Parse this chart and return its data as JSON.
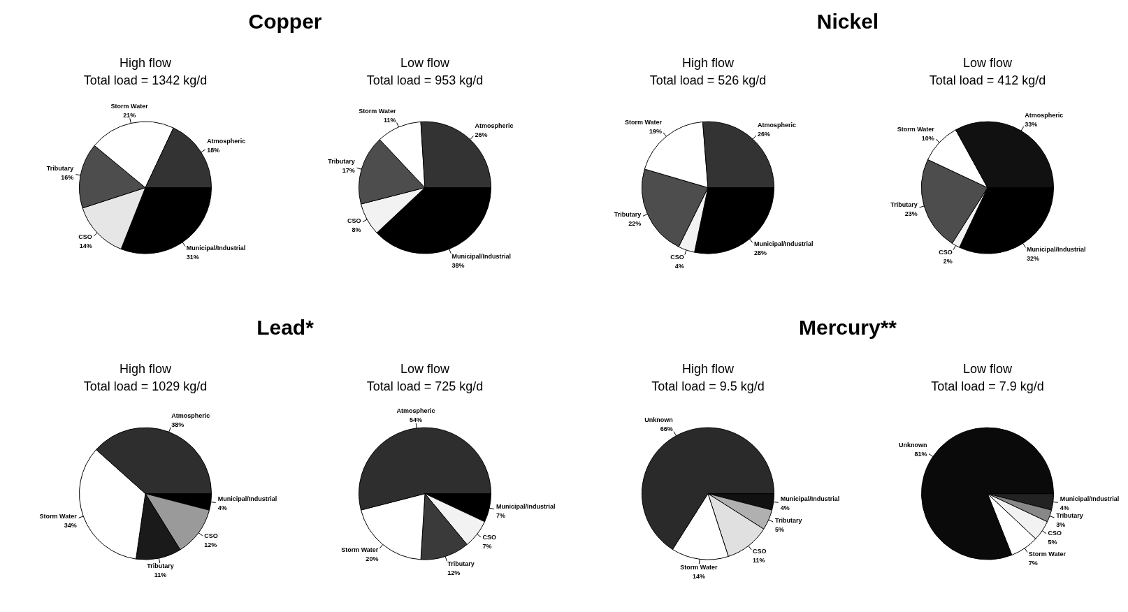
{
  "chart_data": [
    {
      "type": "pie",
      "title": "High flow",
      "subtitle": "Total load = 1342 kg/d",
      "annotations": [
        "Copper"
      ],
      "categories": [
        "Municipal/Industrial",
        "CSO",
        "Tributary",
        "Storm Water",
        "Atmospheric"
      ],
      "values": [
        31,
        14,
        16,
        21,
        18
      ],
      "value_labels": [
        "31%",
        "14%",
        "16%",
        "21%",
        "18%"
      ],
      "colors": [
        "#000000",
        "#e6e6e6",
        "#4d4d4d",
        "#ffffff",
        "#333333"
      ]
    },
    {
      "type": "pie",
      "title": "Low flow",
      "subtitle": "Total load = 953 kg/d",
      "categories": [
        "Municipal/Industrial",
        "CSO",
        "Tributary",
        "Storm Water",
        "Atmospheric"
      ],
      "values": [
        38,
        8,
        17,
        11,
        26
      ],
      "value_labels": [
        "38%",
        "8%",
        "17%",
        "11%",
        "26%"
      ],
      "colors": [
        "#000000",
        "#f2f2f2",
        "#4d4d4d",
        "#ffffff",
        "#333333"
      ]
    },
    {
      "type": "pie",
      "title": "High flow",
      "subtitle": "Total load = 526 kg/d",
      "annotations": [
        "Nickel"
      ],
      "categories": [
        "Municipal/Industrial",
        "CSO",
        "Tributary",
        "Storm Water",
        "Atmospheric"
      ],
      "values": [
        28,
        4,
        22,
        19,
        26
      ],
      "value_labels": [
        "28%",
        "4%",
        "22%",
        "19%",
        "26%"
      ],
      "colors": [
        "#000000",
        "#f2f2f2",
        "#4d4d4d",
        "#ffffff",
        "#333333"
      ]
    },
    {
      "type": "pie",
      "title": "Low flow",
      "subtitle": "Total load = 412 kg/d",
      "categories": [
        "Municipal/Industrial",
        "CSO",
        "Tributary",
        "Storm Water",
        "Atmospheric"
      ],
      "values": [
        32,
        2,
        23,
        10,
        33
      ],
      "value_labels": [
        "32%",
        "2%",
        "23%",
        "10%",
        "33%"
      ],
      "colors": [
        "#000000",
        "#f2f2f2",
        "#4d4d4d",
        "#ffffff",
        "#111111"
      ]
    },
    {
      "type": "pie",
      "title": "High flow",
      "subtitle": "Total load = 1029 kg/d",
      "annotations": [
        "Lead*"
      ],
      "categories": [
        "Municipal/Industrial",
        "CSO",
        "Tributary",
        "Storm Water",
        "Atmospheric"
      ],
      "values": [
        4,
        12,
        11,
        34,
        38
      ],
      "value_labels": [
        "4%",
        "12%",
        "11%",
        "34%",
        "38%"
      ],
      "colors": [
        "#000000",
        "#9a9a9a",
        "#1a1a1a",
        "#ffffff",
        "#2e2e2e"
      ]
    },
    {
      "type": "pie",
      "title": "Low flow",
      "subtitle": "Total load = 725 kg/d",
      "categories": [
        "Municipal/Industrial",
        "CSO",
        "Tributary",
        "Storm Water",
        "Atmospheric"
      ],
      "values": [
        7,
        7,
        12,
        20,
        54
      ],
      "value_labels": [
        "7%",
        "7%",
        "12%",
        "20%",
        "54%"
      ],
      "colors": [
        "#000000",
        "#f2f2f2",
        "#3a3a3a",
        "#ffffff",
        "#2e2e2e"
      ]
    },
    {
      "type": "pie",
      "title": "High flow",
      "subtitle": "Total load = 9.5 kg/d",
      "annotations": [
        "Mercury**"
      ],
      "categories": [
        "Municipal/Industrial",
        "Tributary",
        "CSO",
        "Storm Water",
        "Unknown"
      ],
      "values": [
        4,
        5,
        11,
        14,
        66
      ],
      "value_labels": [
        "4%",
        "5%",
        "11%",
        "14%",
        "66%"
      ],
      "colors": [
        "#111111",
        "#b0b0b0",
        "#e0e0e0",
        "#ffffff",
        "#2a2a2a"
      ]
    },
    {
      "type": "pie",
      "title": "Low flow",
      "subtitle": "Total load = 7.9 kg/d",
      "categories": [
        "Municipal/Industrial",
        "Tributary",
        "CSO",
        "Storm Water",
        "Unknown"
      ],
      "values": [
        4,
        3,
        5,
        7,
        81
      ],
      "value_labels": [
        "4%",
        "3%",
        "5%",
        "7%",
        "81%"
      ],
      "colors": [
        "#222222",
        "#888888",
        "#f2f2f2",
        "#ffffff",
        "#0a0a0a"
      ]
    }
  ]
}
